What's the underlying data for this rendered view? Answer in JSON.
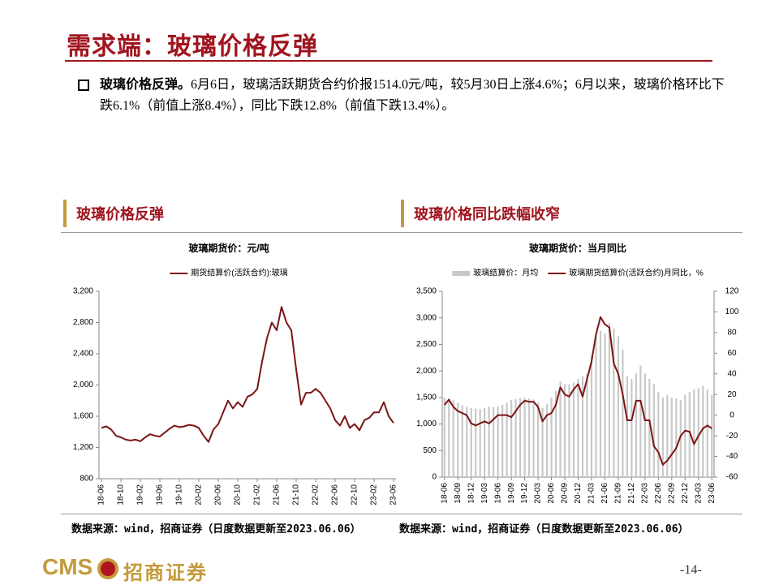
{
  "header": {
    "title": "需求端：玻璃价格反弹"
  },
  "bullet": {
    "lead": "玻璃价格反弹。",
    "text": "6月6日，玻璃活跃期货合约价报1514.0元/吨，较5月30日上涨4.6%；6月以来，玻璃价格环比下跌6.1%（前值上涨8.4%），同比下跌12.8%（前值下跌13.4%）。"
  },
  "sections": [
    "玻璃价格反弹",
    "玻璃价格同比跌幅收窄"
  ],
  "sources": [
    "数据来源：wind，招商证券（日度数据更新至2023.06.06）",
    "数据来源：wind，招商证券（日度数据更新至2023.06.06）"
  ],
  "footer": {
    "logo": "CMS",
    "company": "招商证券",
    "page": "-14-"
  },
  "chart_data": [
    {
      "type": "line",
      "title": "玻璃期货价：元/吨",
      "legend": "top",
      "categories": [
        "18-06",
        null,
        null,
        null,
        "18-10",
        null,
        null,
        null,
        "19-02",
        null,
        null,
        null,
        "19-06",
        null,
        null,
        null,
        "19-10",
        null,
        null,
        null,
        "20-02",
        null,
        null,
        null,
        "20-06",
        null,
        null,
        null,
        "20-10",
        null,
        null,
        null,
        "21-02",
        null,
        null,
        null,
        "21-06",
        null,
        null,
        null,
        "21-10",
        null,
        null,
        null,
        "22-02",
        null,
        null,
        null,
        "22-06",
        null,
        null,
        null,
        "22-10",
        null,
        null,
        null,
        "23-02",
        null,
        null,
        null,
        "23-06"
      ],
      "series": [
        {
          "name": "期货结算价(活跃合约):玻璃",
          "color": "#7b1416",
          "values": [
            1450,
            1470,
            1430,
            1350,
            1330,
            1300,
            1290,
            1300,
            1280,
            1330,
            1370,
            1350,
            1340,
            1390,
            1440,
            1480,
            1460,
            1470,
            1490,
            1480,
            1450,
            1350,
            1270,
            1430,
            1500,
            1650,
            1800,
            1700,
            1780,
            1720,
            1850,
            1880,
            1950,
            2300,
            2600,
            2800,
            2700,
            3000,
            2800,
            2700,
            2200,
            1750,
            1900,
            1900,
            1950,
            1900,
            1800,
            1700,
            1550,
            1480,
            1600,
            1450,
            1500,
            1420,
            1550,
            1580,
            1650,
            1650,
            1780,
            1600,
            1514
          ]
        }
      ],
      "ylim": [
        800,
        3200
      ],
      "yticks": [
        800,
        {
          "value": 1200,
          "label": "1,200"
        },
        {
          "value": 1600,
          "label": "1,600"
        },
        {
          "value": 2000,
          "label": "2,000"
        },
        {
          "value": 2400,
          "label": "2,400"
        },
        {
          "value": 2800,
          "label": "2,800"
        },
        {
          "value": 3200,
          "label": "3,200"
        }
      ]
    },
    {
      "type": "combo",
      "title": "玻璃期货价：当月同比",
      "legend": "top",
      "categories": [
        "18-06",
        null,
        null,
        "18-09",
        null,
        null,
        "18-12",
        null,
        null,
        "19-03",
        null,
        null,
        "19-06",
        null,
        null,
        "19-09",
        null,
        null,
        "19-12",
        null,
        null,
        "20-03",
        null,
        null,
        "20-06",
        null,
        null,
        "20-09",
        null,
        null,
        "20-12",
        null,
        null,
        "21-03",
        null,
        null,
        "21-06",
        null,
        null,
        "21-09",
        null,
        null,
        "21-12",
        null,
        null,
        "22-03",
        null,
        null,
        "22-06",
        null,
        null,
        "22-09",
        null,
        null,
        "22-12",
        null,
        null,
        "23-03",
        null,
        null,
        "23-06"
      ],
      "series": [
        {
          "name": "玻璃结算价：月均",
          "type": "bar",
          "color": "#c8c8c8",
          "values": [
            1500,
            1480,
            1450,
            1400,
            1350,
            1320,
            1300,
            1290,
            1280,
            1300,
            1330,
            1320,
            1330,
            1360,
            1400,
            1450,
            1470,
            1480,
            1490,
            1480,
            1460,
            1400,
            1300,
            1380,
            1500,
            1620,
            1800,
            1750,
            1750,
            1780,
            1850,
            1900,
            1950,
            2300,
            2650,
            2750,
            2700,
            2900,
            2800,
            2650,
            2400,
            1900,
            1850,
            1950,
            2100,
            1950,
            1850,
            1750,
            1600,
            1500,
            1550,
            1500,
            1480,
            1450,
            1550,
            1600,
            1650,
            1680,
            1720,
            1650,
            1550
          ]
        },
        {
          "name": "玻璃期货结算价(活跃合约)月同比，%",
          "type": "line",
          "axis": "y2",
          "color": "#7b1416",
          "values": [
            10,
            15,
            8,
            4,
            2,
            0,
            -8,
            -10,
            -8,
            -6,
            -8,
            -4,
            0,
            0,
            0,
            -2,
            4,
            10,
            14,
            13,
            13,
            8,
            -6,
            0,
            2,
            10,
            27,
            20,
            18,
            25,
            30,
            18,
            35,
            52,
            78,
            95,
            88,
            85,
            50,
            40,
            20,
            -5,
            -5,
            14,
            14,
            -5,
            -5,
            -30,
            -36,
            -48,
            -44,
            -38,
            -32,
            -20,
            -15,
            -16,
            -28,
            -20,
            -13,
            -10,
            -12.8
          ]
        }
      ],
      "ylim": [
        0,
        3500
      ],
      "yticks": [
        0,
        500,
        {
          "value": 1000,
          "label": "1,000"
        },
        {
          "value": 1500,
          "label": "1,500"
        },
        {
          "value": 2000,
          "label": "2,000"
        },
        {
          "value": 2500,
          "label": "2,500"
        },
        {
          "value": 3000,
          "label": "3,000"
        },
        {
          "value": 3500,
          "label": "3,500"
        }
      ],
      "y2lim": [
        -60,
        120
      ],
      "y2ticks": [
        -60,
        -40,
        -20,
        0,
        20,
        40,
        60,
        80,
        100,
        120
      ]
    }
  ]
}
